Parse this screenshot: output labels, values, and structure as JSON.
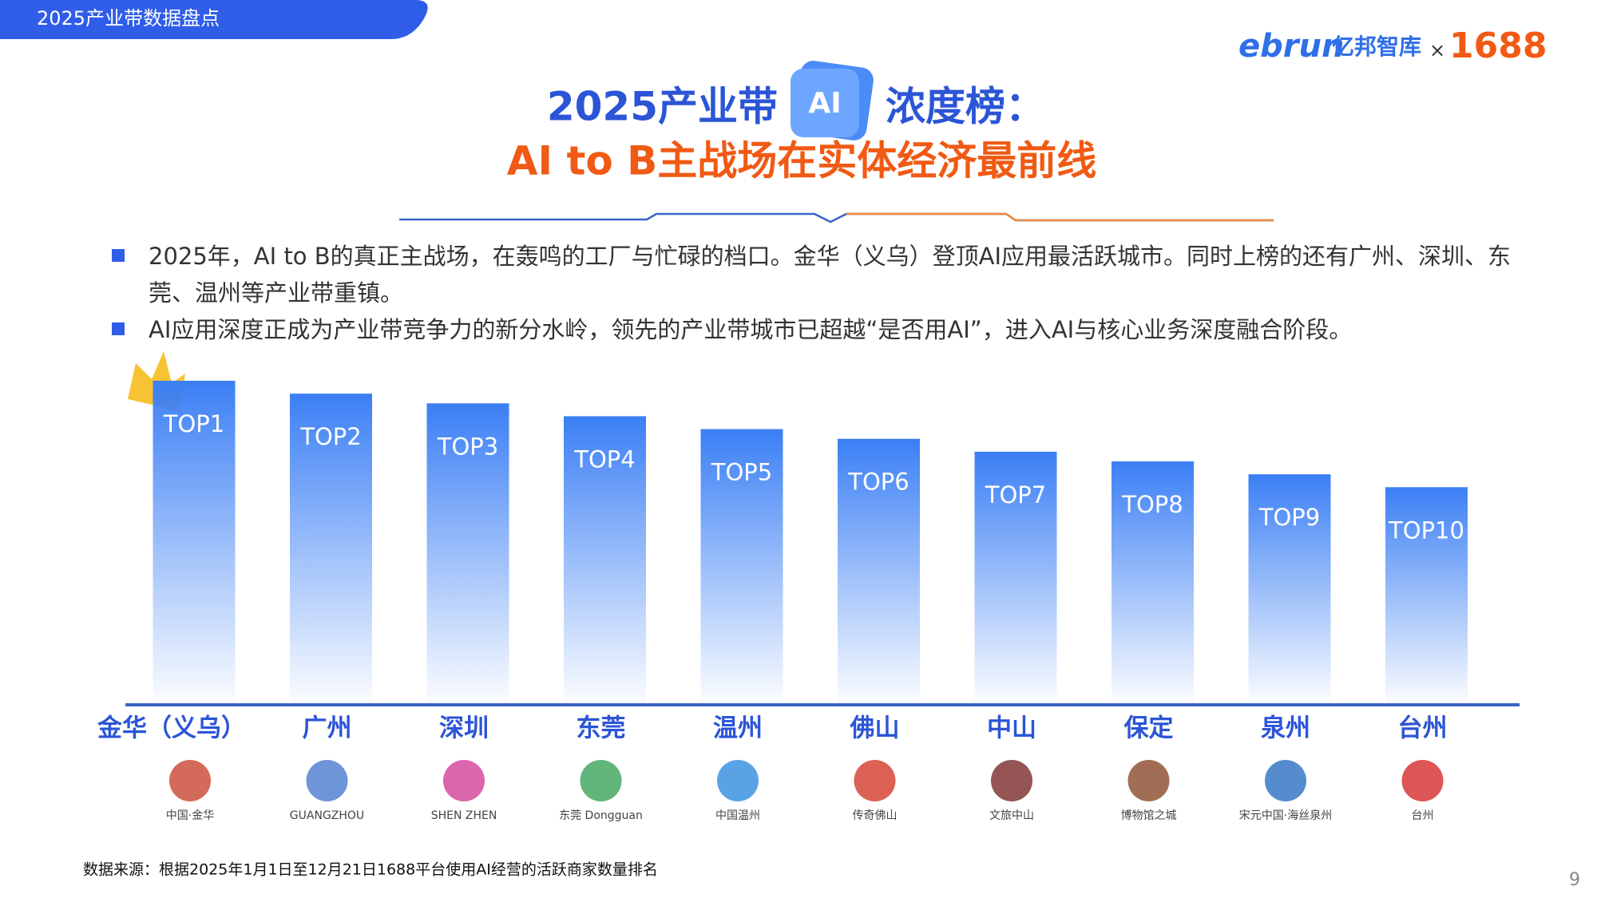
{
  "header": {
    "tag": "2025产业带数据盘点",
    "brand": "ebrun",
    "brand_cn": "亿邦智库",
    "times": "×",
    "partner": "1688"
  },
  "title": {
    "prefix": "2025产业带",
    "badge": "AI",
    "suffix": "浓度榜：",
    "subtitle": "AI to B主战场在实体经济最前线"
  },
  "bullets": [
    "2025年，AI to B的真正主战场，在轰鸣的工厂与忙碌的档口。金华（义乌）登顶AI应用最活跃城市。同时上榜的还有广州、深圳、东莞、温州等产业带重镇。",
    "AI应用深度正成为产业带竞争力的新分水岭，领先的产业带城市已超越“是否用AI”，进入AI与核心业务深度融合阶段。"
  ],
  "chart_data": {
    "type": "bar",
    "categories": [
      "金华（义乌）",
      "广州",
      "深圳",
      "东莞",
      "温州",
      "佛山",
      "中山",
      "保定",
      "泉州",
      "台州"
    ],
    "values": [
      100,
      96,
      93,
      89,
      85,
      82,
      78,
      75,
      71,
      67
    ],
    "bar_labels": [
      "TOP1",
      "TOP2",
      "TOP3",
      "TOP4",
      "TOP5",
      "TOP6",
      "TOP7",
      "TOP8",
      "TOP9",
      "TOP10"
    ],
    "logos": [
      "中国·金华",
      "GUANGZHOU",
      "SHEN ZHEN",
      "东莞 Dongguan",
      "中国温州",
      "传奇佛山",
      "文旅中山",
      "博物馆之城",
      "宋元中国·海丝泉州",
      "台州"
    ],
    "color": "#3b7ff5",
    "ylim": [
      0,
      100
    ]
  },
  "source": "数据来源：根据2025年1月1日至12月21日1688平台使用AI经营的活跃商家数量排名",
  "page_number": "9"
}
